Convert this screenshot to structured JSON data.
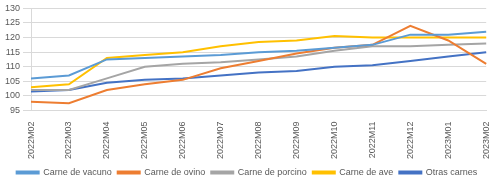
{
  "chart_data": {
    "type": "line",
    "categories": [
      "2022M02",
      "2022M03",
      "2022M04",
      "2022M05",
      "2022M06",
      "2022M07",
      "2022M08",
      "2022M09",
      "2022M10",
      "2022M11",
      "2022M12",
      "2023M01",
      "2023M02"
    ],
    "series": [
      {
        "name": "Carne de vacuno",
        "color": "#5b9bd5",
        "values": [
          106,
          107,
          112.5,
          113,
          113.5,
          114,
          115,
          115.5,
          116.5,
          117.5,
          121,
          121,
          122
        ]
      },
      {
        "name": "Carne de ovino",
        "color": "#ed7d31",
        "values": [
          98,
          97.5,
          102,
          104,
          105.5,
          109.5,
          112,
          114.5,
          116.5,
          117.5,
          124,
          119,
          111
        ]
      },
      {
        "name": "Carne de porcino",
        "color": "#a5a5a5",
        "values": [
          102,
          102,
          106,
          110,
          111,
          111.5,
          112.5,
          113.5,
          115.5,
          117,
          117,
          117.5,
          118
        ]
      },
      {
        "name": "Carne de ave",
        "color": "#ffc000",
        "values": [
          103,
          104,
          113,
          114,
          115,
          117,
          118.5,
          119,
          120.5,
          120,
          120,
          120,
          120
        ]
      },
      {
        "name": "Otras carnes",
        "color": "#4472c4",
        "values": [
          101.5,
          102,
          104.5,
          105.5,
          106,
          107,
          108,
          108.5,
          110,
          110.5,
          112,
          113.5,
          115
        ]
      }
    ],
    "ylim": [
      95,
      130
    ],
    "yticks": [
      95,
      100,
      105,
      110,
      115,
      120,
      125,
      130
    ],
    "grid": true,
    "legend": "bottom"
  }
}
